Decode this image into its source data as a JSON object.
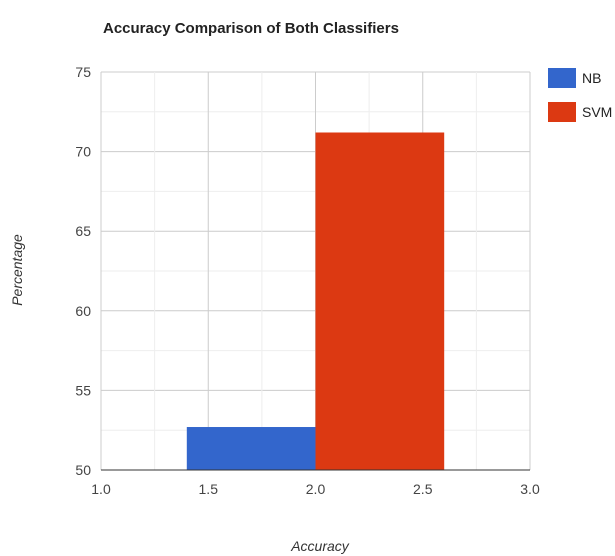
{
  "chart_data": {
    "type": "bar",
    "title": "Accuracy Comparison of Both Classifiers",
    "xlabel": "Accuracy",
    "ylabel": "Percentage",
    "xlim": [
      1.0,
      3.0
    ],
    "ylim": [
      50,
      75
    ],
    "x_ticks": [
      "1.0",
      "1.5",
      "2.0",
      "2.5",
      "3.0"
    ],
    "y_ticks": [
      "50",
      "55",
      "60",
      "65",
      "70",
      "75"
    ],
    "grid": true,
    "legend_position": "right",
    "series": [
      {
        "name": "NB",
        "x": 2,
        "value": 52.7,
        "color": "#3366cc"
      },
      {
        "name": "SVM",
        "x": 2,
        "value": 71.2,
        "color": "#dc3912"
      }
    ],
    "bar_group_width": 1.2
  }
}
